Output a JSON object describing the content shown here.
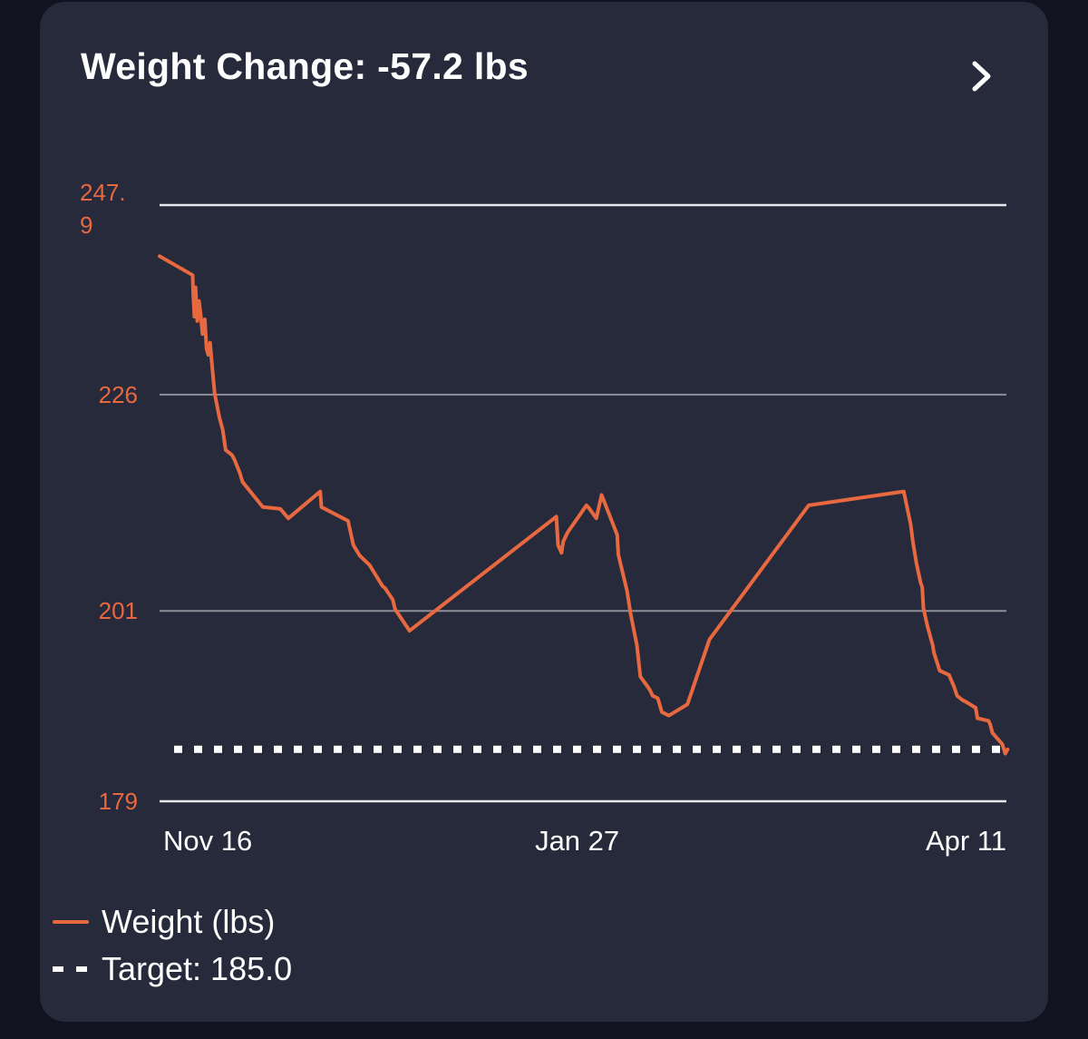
{
  "header": {
    "title": "Weight Change: -57.2 lbs"
  },
  "icons": {
    "detail": "chevron-right-icon"
  },
  "colors": {
    "background": "#111320",
    "card": "#272a3b",
    "series": "#e8683f",
    "tick_label": "#e8683f",
    "grid": "#8e9099",
    "target": "#ffffff",
    "text": "#ffffff"
  },
  "chart_data": {
    "type": "line",
    "title": "Weight Change: -57.2 lbs",
    "xlabel": "",
    "ylabel": "",
    "x_ticks": [
      {
        "value": 0,
        "label": "Nov 16"
      },
      {
        "value": 72,
        "label": "Jan 27"
      },
      {
        "value": 146,
        "label": "Apr 11"
      }
    ],
    "x_range": [
      0,
      146
    ],
    "y_ticks": [
      {
        "value": 179,
        "label": "179"
      },
      {
        "value": 201,
        "label": "201"
      },
      {
        "value": 226,
        "label": "226"
      },
      {
        "value": 247.9,
        "label": "247.\n9"
      }
    ],
    "ylim": [
      179,
      247.9
    ],
    "grid": true,
    "legend_position": "bottom-left",
    "series": [
      {
        "name": "Weight (lbs)",
        "x": [
          0,
          5.7,
          5.8,
          6.0,
          6.2,
          6.5,
          6.8,
          7.1,
          7.4,
          7.8,
          8.1,
          8.4,
          8.7,
          9.1,
          9.5,
          10.3,
          10.9,
          11.4,
          12.5,
          12.9,
          13.8,
          14.3,
          17.8,
          20.8,
          22.2,
          27.7,
          27.9,
          32.5,
          33.4,
          34.5,
          36.2,
          38.4,
          38.9,
          40.2,
          40.6,
          43.1,
          68.4,
          68.7,
          69.3,
          69.6,
          70.3,
          70.6,
          73.6,
          73.9,
          75.3,
          76.2,
          78.9,
          79.1,
          80.6,
          81.2,
          82.3,
          82.9,
          84.1,
          84.5,
          85.0,
          85.9,
          86.6,
          87.8,
          91.0,
          94.8,
          111.9,
          128.3,
          129.5,
          129.9,
          130.5,
          131.2,
          131.5,
          131.7,
          132.4,
          133.3,
          133.5,
          134.5,
          136.1,
          137.0,
          137.5,
          138.4,
          139.0,
          140.7,
          141.0,
          142.9,
          143.2,
          143.6,
          145.3,
          145.8,
          146.2
        ],
        "values": [
          242.0,
          239.8,
          237.6,
          235.0,
          238.4,
          234.5,
          236.8,
          235.2,
          233.0,
          234.7,
          231.3,
          230.6,
          232.0,
          229.0,
          226.1,
          223.4,
          221.9,
          219.6,
          219.0,
          218.5,
          217.0,
          215.9,
          213.0,
          212.8,
          211.7,
          214.8,
          213.0,
          211.4,
          208.6,
          207.4,
          206.3,
          203.9,
          203.6,
          202.3,
          201.2,
          198.7,
          211.9,
          208.6,
          207.7,
          209.0,
          210.0,
          210.3,
          213.2,
          213.0,
          211.7,
          214.4,
          209.8,
          207.5,
          203.3,
          200.7,
          197.0,
          193.4,
          192.3,
          191.9,
          191.2,
          190.9,
          189.3,
          188.9,
          190.2,
          197.7,
          213.2,
          214.8,
          211.0,
          208.9,
          206.5,
          204.3,
          203.7,
          201.3,
          199.2,
          197.0,
          196.2,
          194.1,
          193.6,
          192.2,
          191.2,
          190.7,
          190.5,
          189.8,
          188.6,
          188.3,
          187.9,
          186.9,
          185.6,
          184.5,
          185.0
        ]
      },
      {
        "name": "Target: 185.0",
        "constant": 185.0
      }
    ]
  }
}
